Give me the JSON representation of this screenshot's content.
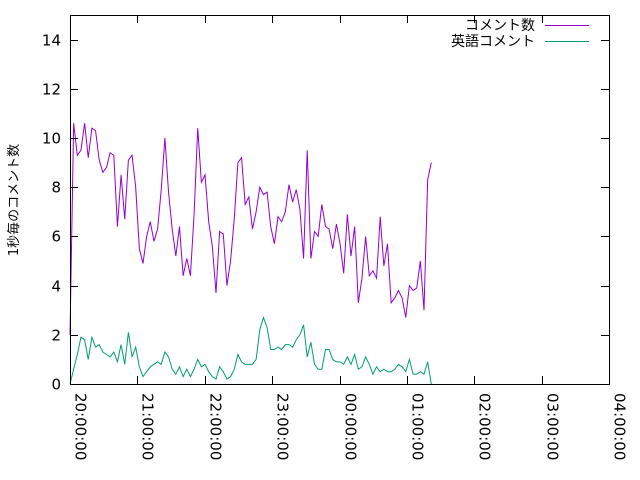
{
  "chart_data": {
    "type": "line",
    "title": "",
    "xlabel": "",
    "ylabel": "1秒毎のコメント数",
    "xlim": [
      "20:00:00",
      "04:00:00"
    ],
    "ylim": [
      0,
      15
    ],
    "x_ticks": [
      "20:00:00",
      "21:00:00",
      "22:00:00",
      "23:00:00",
      "00:00:00",
      "01:00:00",
      "02:00:00",
      "03:00:00",
      "04:00:00"
    ],
    "y_ticks": [
      "0",
      "2",
      "4",
      "6",
      "8",
      "10",
      "12",
      "14"
    ],
    "grid": false,
    "legend_position": "top-right",
    "sample_interval_minutes": 3.25,
    "series": [
      {
        "name": "コメント数",
        "color": "#9400d3",
        "values": [
          2.0,
          10.6,
          9.3,
          9.5,
          10.6,
          9.2,
          10.4,
          10.3,
          9.1,
          8.6,
          8.8,
          9.4,
          9.3,
          6.4,
          8.5,
          6.7,
          9.1,
          9.3,
          8.0,
          5.5,
          4.9,
          6.0,
          6.6,
          5.8,
          6.3,
          7.9,
          10.0,
          7.8,
          6.3,
          5.2,
          6.4,
          4.4,
          5.1,
          4.4,
          6.9,
          10.4,
          8.2,
          8.5,
          6.6,
          5.6,
          3.7,
          6.2,
          6.1,
          4.0,
          5.0,
          6.7,
          9.0,
          9.2,
          7.3,
          7.6,
          6.3,
          7.0,
          8.0,
          7.7,
          7.8,
          6.4,
          5.7,
          6.8,
          6.6,
          7.0,
          8.1,
          7.4,
          7.9,
          7.1,
          5.1,
          9.5,
          5.1,
          6.2,
          6.0,
          7.3,
          6.4,
          6.3,
          5.5,
          6.5,
          5.7,
          4.5,
          6.9,
          5.2,
          6.4,
          3.3,
          4.3,
          6.0,
          4.4,
          4.6,
          4.3,
          6.8,
          4.8,
          5.7,
          3.3,
          3.5,
          3.8,
          3.5,
          2.7,
          4.0,
          3.8,
          3.9,
          5.0,
          3.0,
          8.3,
          9.0
        ]
      },
      {
        "name": "英語コメント",
        "color": "#009e73",
        "values": [
          0.0,
          0.6,
          1.2,
          1.9,
          1.8,
          1.0,
          1.9,
          1.5,
          1.6,
          1.3,
          1.2,
          1.1,
          1.3,
          0.9,
          1.6,
          0.8,
          2.1,
          1.1,
          1.5,
          0.7,
          0.3,
          0.5,
          0.7,
          0.8,
          0.9,
          0.8,
          1.3,
          1.1,
          0.6,
          0.4,
          0.7,
          0.3,
          0.6,
          0.3,
          0.6,
          1.0,
          0.7,
          0.8,
          0.5,
          0.3,
          0.2,
          0.7,
          0.5,
          0.2,
          0.3,
          0.6,
          1.2,
          0.9,
          0.8,
          0.8,
          0.8,
          1.0,
          2.2,
          2.7,
          2.3,
          1.4,
          1.4,
          1.5,
          1.4,
          1.6,
          1.6,
          1.5,
          1.8,
          2.0,
          2.4,
          1.1,
          1.7,
          0.8,
          0.6,
          0.6,
          1.4,
          1.4,
          1.0,
          0.9,
          0.9,
          0.8,
          1.1,
          0.8,
          1.2,
          0.6,
          0.7,
          1.1,
          0.8,
          0.4,
          0.7,
          0.5,
          0.6,
          0.5,
          0.5,
          0.6,
          0.8,
          0.7,
          0.5,
          1.0,
          0.4,
          0.4,
          0.5,
          0.4,
          0.9,
          0.0
        ]
      }
    ]
  }
}
